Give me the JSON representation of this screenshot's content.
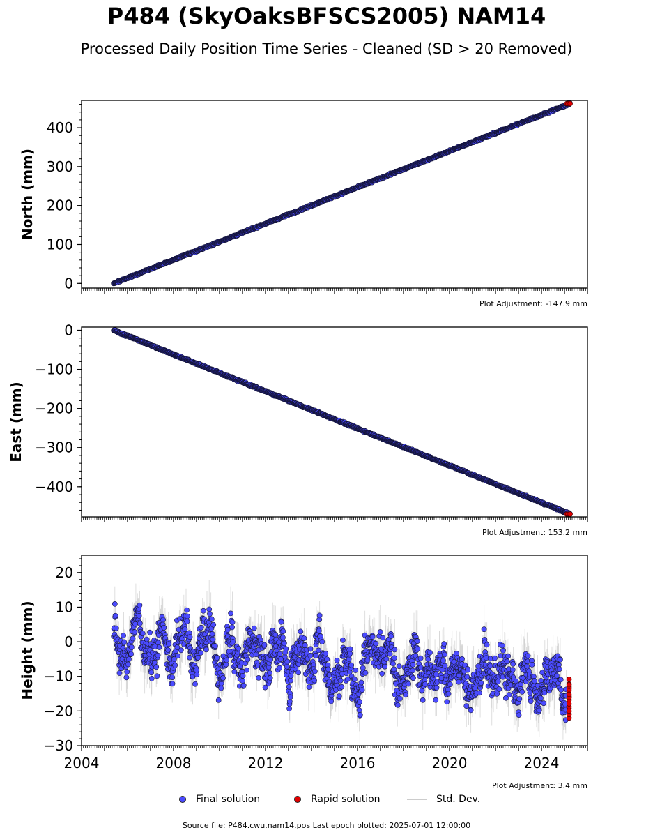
{
  "header": {
    "title": "P484 (SkyOaksBFSCS2005) NAM14",
    "subtitle": "Processed Daily Position Time Series - Cleaned (SD > 20 Removed)"
  },
  "chart_data": [
    {
      "type": "scatter",
      "panel": "north",
      "ylabel": "North (mm)",
      "xlim": [
        2004,
        2026
      ],
      "ylim": [
        -12,
        470
      ],
      "yticks": [
        0,
        100,
        200,
        300,
        400
      ],
      "trend": {
        "x": [
          2005.4,
          2025.25
        ],
        "y": [
          0,
          462
        ]
      },
      "adjustment": "Plot Adjustment: -147.9 mm",
      "rapid_solution": {
        "x_range": [
          2025.1,
          2025.25
        ],
        "y": 462
      }
    },
    {
      "type": "scatter",
      "panel": "east",
      "ylabel": "East (mm)",
      "xlim": [
        2004,
        2026
      ],
      "ylim": [
        -477,
        8
      ],
      "yticks": [
        0,
        -100,
        -200,
        -300,
        -400
      ],
      "trend": {
        "x": [
          2005.4,
          2025.25
        ],
        "y": [
          0,
          -470
        ]
      },
      "adjustment": "Plot Adjustment: 153.2 mm",
      "rapid_solution": {
        "x_range": [
          2025.1,
          2025.25
        ],
        "y": -470
      }
    },
    {
      "type": "scatter",
      "panel": "height",
      "ylabel": "Height (mm)",
      "xlim": [
        2004,
        2026
      ],
      "ylim": [
        -30,
        25
      ],
      "yticks": [
        20,
        10,
        0,
        -10,
        -20,
        -30
      ],
      "xticks": [
        2004,
        2008,
        2012,
        2016,
        2020,
        2024
      ],
      "trend": {
        "x": [
          2005.4,
          2025.25
        ],
        "y": [
          1,
          -12
        ]
      },
      "scatter_sd_mm": 6,
      "adjustment": "Plot Adjustment: 3.4 mm",
      "rapid_solution": {
        "x": 2025.2,
        "y_range": [
          -22,
          -11
        ]
      }
    }
  ],
  "legend": {
    "final": "Final solution",
    "rapid": "Rapid solution",
    "std": "Std. Dev."
  },
  "colors": {
    "final": "#4b4bff",
    "rapid": "#e00000",
    "std": "#9a9a9a"
  },
  "footer": {
    "source": "Source file: P484.cwu.nam14.pos  Last epoch plotted: 2025-07-01 12:00:00"
  }
}
